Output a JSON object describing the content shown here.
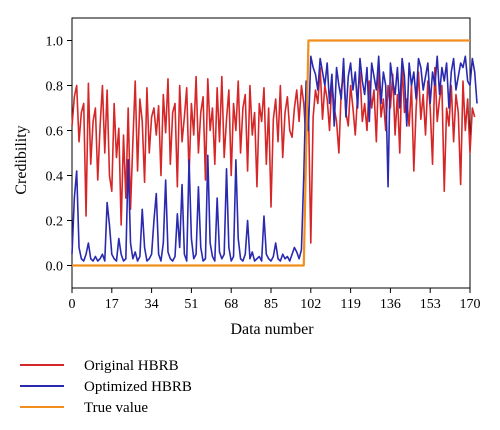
{
  "chart_data": {
    "type": "line",
    "xlabel": "Data number",
    "ylabel": "Credibility",
    "xlim": [
      0,
      170
    ],
    "ylim": [
      -0.1,
      1.1
    ],
    "x_ticks": [
      0,
      17,
      34,
      51,
      68,
      85,
      102,
      119,
      136,
      153,
      170
    ],
    "y_ticks": [
      0.0,
      0.2,
      0.4,
      0.6,
      0.8,
      1.0
    ],
    "y_tick_labels": [
      "0.0",
      "0.2",
      "0.4",
      "0.6",
      "0.8",
      "1.0"
    ],
    "grid": false,
    "legend_position": "below",
    "series": [
      {
        "name": "Original HBRB",
        "color": "#d62728",
        "values": [
          0.62,
          0.75,
          0.8,
          0.55,
          0.68,
          0.72,
          0.22,
          0.81,
          0.45,
          0.64,
          0.7,
          0.38,
          0.62,
          0.8,
          0.5,
          0.78,
          0.4,
          0.33,
          0.72,
          0.48,
          0.61,
          0.18,
          0.58,
          0.3,
          0.7,
          0.25,
          0.55,
          0.82,
          0.42,
          0.74,
          0.64,
          0.37,
          0.79,
          0.5,
          0.66,
          0.7,
          0.58,
          0.71,
          0.4,
          0.76,
          0.59,
          0.83,
          0.45,
          0.68,
          0.72,
          0.35,
          0.8,
          0.55,
          0.66,
          0.79,
          0.4,
          0.72,
          0.58,
          0.84,
          0.5,
          0.68,
          0.75,
          0.38,
          0.83,
          0.6,
          0.7,
          0.45,
          0.79,
          0.55,
          0.84,
          0.48,
          0.65,
          0.78,
          0.4,
          0.72,
          0.6,
          0.82,
          0.5,
          0.7,
          0.76,
          0.42,
          0.8,
          0.58,
          0.68,
          0.35,
          0.72,
          0.64,
          0.79,
          0.45,
          0.7,
          0.26,
          0.65,
          0.74,
          0.55,
          0.8,
          0.48,
          0.68,
          0.75,
          0.6,
          0.57,
          0.7,
          0.78,
          0.64,
          0.8,
          0.72,
          0.55,
          0.7,
          0.1,
          0.66,
          0.78,
          0.72,
          0.88,
          0.65,
          0.8,
          0.74,
          0.6,
          0.82,
          0.7,
          0.64,
          0.5,
          0.78,
          0.85,
          0.68,
          0.62,
          0.8,
          0.7,
          0.58,
          0.76,
          0.86,
          0.64,
          0.72,
          0.6,
          0.82,
          0.7,
          0.78,
          0.55,
          0.88,
          0.66,
          0.74,
          0.6,
          0.8,
          0.7,
          0.85,
          0.58,
          0.76,
          0.5,
          0.9,
          0.68,
          0.74,
          0.62,
          0.8,
          0.42,
          0.7,
          0.86,
          0.65,
          0.76,
          0.58,
          0.82,
          0.7,
          0.45,
          0.88,
          0.64,
          0.74,
          0.8,
          0.33,
          0.7,
          0.62,
          0.8,
          0.55,
          0.76,
          0.68,
          0.36,
          0.82,
          0.6,
          0.74,
          0.5,
          0.7,
          0.66
        ],
        "x_start": 0,
        "x_step": 1
      },
      {
        "name": "Optimized HBRB",
        "color": "#2a2ab0",
        "values": [
          0.05,
          0.3,
          0.42,
          0.08,
          0.03,
          0.02,
          0.05,
          0.1,
          0.03,
          0.02,
          0.04,
          0.02,
          0.03,
          0.05,
          0.02,
          0.28,
          0.18,
          0.05,
          0.03,
          0.02,
          0.12,
          0.05,
          0.02,
          0.03,
          0.47,
          0.1,
          0.03,
          0.06,
          0.02,
          0.04,
          0.25,
          0.08,
          0.02,
          0.03,
          0.05,
          0.2,
          0.32,
          0.05,
          0.02,
          0.1,
          0.38,
          0.06,
          0.03,
          0.02,
          0.04,
          0.23,
          0.08,
          0.36,
          0.05,
          0.02,
          0.47,
          0.12,
          0.03,
          0.05,
          0.35,
          0.08,
          0.02,
          0.03,
          0.49,
          0.1,
          0.04,
          0.02,
          0.3,
          0.06,
          0.03,
          0.05,
          0.43,
          0.08,
          0.02,
          0.04,
          0.47,
          0.12,
          0.03,
          0.02,
          0.05,
          0.2,
          0.03,
          0.06,
          0.02,
          0.03,
          0.04,
          0.02,
          0.22,
          0.05,
          0.03,
          0.02,
          0.04,
          0.1,
          0.03,
          0.02,
          0.05,
          0.03,
          0.04,
          0.02,
          0.05,
          0.08,
          0.06,
          0.03,
          0.07,
          0.4,
          0.82,
          0.6,
          0.93,
          0.88,
          0.85,
          0.78,
          0.92,
          0.86,
          0.8,
          0.9,
          0.72,
          0.85,
          0.62,
          0.88,
          0.8,
          0.74,
          0.92,
          0.66,
          0.84,
          0.9,
          0.78,
          0.86,
          0.7,
          0.92,
          0.82,
          0.76,
          0.88,
          0.64,
          0.9,
          0.84,
          0.78,
          0.93,
          0.72,
          0.86,
          0.8,
          0.35,
          0.9,
          0.82,
          0.76,
          0.88,
          0.7,
          0.92,
          0.84,
          0.62,
          0.9,
          0.8,
          0.86,
          0.74,
          0.92,
          0.88,
          0.78,
          0.84,
          0.9,
          0.72,
          0.86,
          0.8,
          0.93,
          0.76,
          0.88,
          0.82,
          0.9,
          0.7,
          0.86,
          0.92,
          0.78,
          0.84,
          0.9,
          0.88,
          0.93,
          0.82,
          0.8,
          0.92,
          0.86,
          0.72
        ],
        "x_start": 0,
        "x_step": 1
      },
      {
        "name": "True value",
        "color": "#f28e1c",
        "points": [
          [
            0,
            0.0
          ],
          [
            99,
            0.0
          ],
          [
            101,
            1.0
          ],
          [
            170,
            1.0
          ]
        ]
      }
    ]
  }
}
